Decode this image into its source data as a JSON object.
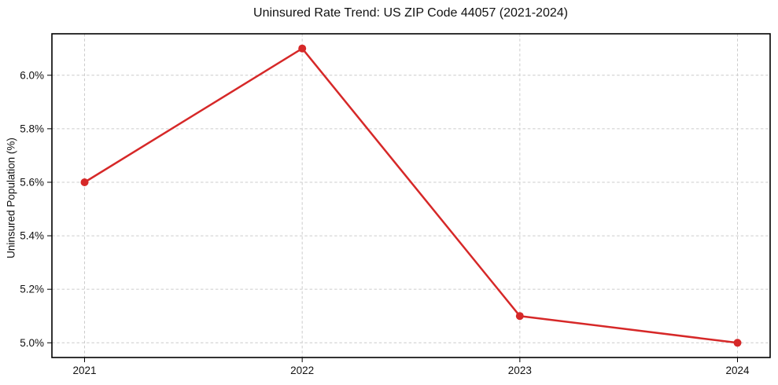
{
  "chart_data": {
    "type": "line",
    "title": "Uninsured Rate Trend: US ZIP Code 44057 (2021-2024)",
    "ylabel": "Uninsured Population (%)",
    "xlabel": "",
    "x": [
      2021,
      2022,
      2023,
      2024
    ],
    "values": [
      5.6,
      6.1,
      5.1,
      5.0
    ],
    "xtick_labels": [
      "2021",
      "2022",
      "2023",
      "2024"
    ],
    "ytick_values": [
      5.0,
      5.2,
      5.4,
      5.6,
      5.8,
      6.0
    ],
    "ytick_labels": [
      "5.0%",
      "5.2%",
      "5.4%",
      "5.6%",
      "5.8%",
      "6.0%"
    ],
    "xlim": [
      2020.85,
      2024.15
    ],
    "ylim": [
      4.945,
      6.155
    ],
    "grid": true,
    "legend": false,
    "marker": "circle",
    "line_color": "#d62828",
    "grid_color": "#cccccc",
    "axis_color": "#000000",
    "background_color": "#ffffff"
  }
}
